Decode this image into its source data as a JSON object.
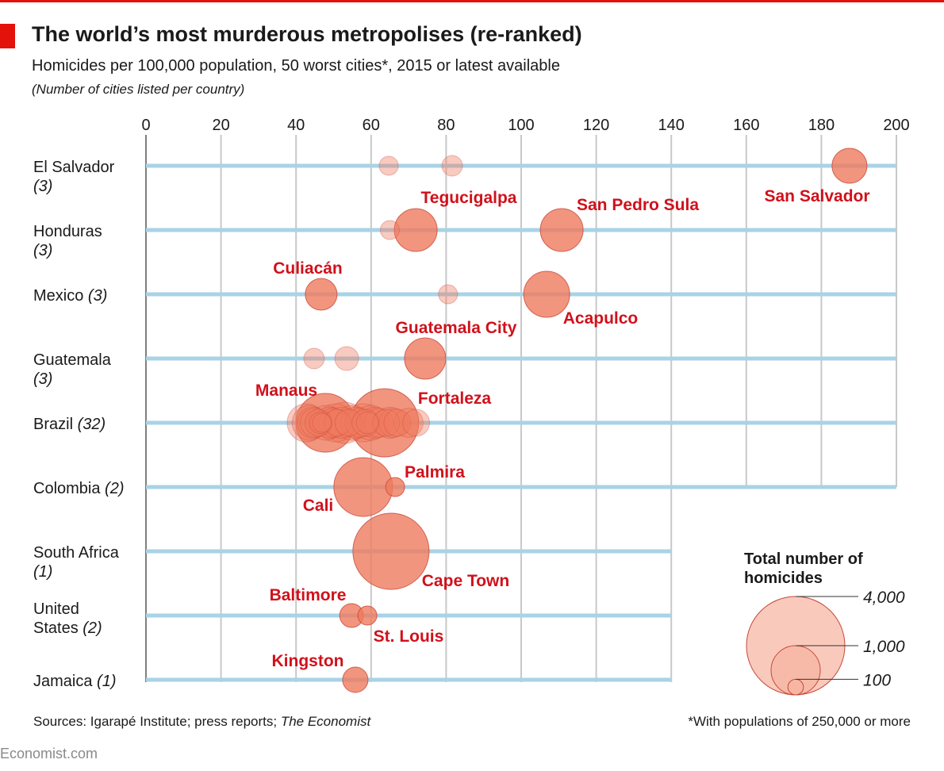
{
  "header": {
    "title": "The world’s most murderous metropolises (re-ranked)",
    "subtitle": "Homicides per 100,000 population, 50 worst cities*, 2015 or latest available",
    "note": "(Number of cities listed per country)"
  },
  "footer": {
    "sources_prefix": "Sources: Igarapé Institute; press reports; ",
    "sources_italic": "The Economist",
    "footnote": "*With populations of 250,000 or more",
    "brand": "Economist.com"
  },
  "colors": {
    "accent": "#e3120b",
    "bubble_fill": "#ef7a5e",
    "bubble_stroke": "#c8473a",
    "label": "#d0111b",
    "row_line": "#a9d3e6",
    "grid": "#c8c8c8"
  },
  "chart_data": {
    "type": "scatter",
    "title": "The world’s most murderous metropolises (re-ranked)",
    "xlabel": "",
    "xlim": [
      0,
      200
    ],
    "xticks": [
      "0",
      "20",
      "40",
      "60",
      "80",
      "100",
      "120",
      "140",
      "160",
      "180",
      "200"
    ],
    "grid": true,
    "size_encoding": "Total number of homicides",
    "legend": {
      "title": "Total number of homicides",
      "entries": [
        "4,000",
        "1,000",
        "100"
      ],
      "values": [
        4000,
        1000,
        100
      ],
      "placement": "bottom-right"
    },
    "rows": [
      {
        "country": "El Salvador",
        "count": "(3)",
        "cities": [
          {
            "x": 64.7,
            "n": 150
          },
          {
            "x": 81.6,
            "n": 175
          },
          {
            "x": 187.5,
            "n": 504,
            "label": "San Salvador"
          }
        ]
      },
      {
        "country": "Honduras",
        "count": "(3)",
        "cities": [
          {
            "x": 65,
            "n": 150
          },
          {
            "x": 71.9,
            "n": 758,
            "label": "Tegucigalpa"
          },
          {
            "x": 110.8,
            "n": 758,
            "label": "San Pedro Sula"
          }
        ]
      },
      {
        "country": "Mexico",
        "count": "(3)",
        "cities": [
          {
            "x": 46.7,
            "n": 416,
            "label": "Culiacán"
          },
          {
            "x": 80.5,
            "n": 150
          },
          {
            "x": 106.8,
            "n": 875,
            "label": "Acapulco"
          }
        ]
      },
      {
        "country": "Guatemala",
        "count": "(3)",
        "cities": [
          {
            "x": 44.8,
            "n": 175
          },
          {
            "x": 53.5,
            "n": 234
          },
          {
            "x": 74.4,
            "n": 703,
            "label": "Guatemala City"
          }
        ]
      },
      {
        "country": "Brazil",
        "count": "(32)",
        "cities": [
          {
            "x": 42.7,
            "n": 600
          },
          {
            "x": 43.6,
            "n": 500
          },
          {
            "x": 44.5,
            "n": 400
          },
          {
            "x": 45.0,
            "n": 350
          },
          {
            "x": 46.0,
            "n": 300
          },
          {
            "x": 46.5,
            "n": 200
          },
          {
            "x": 46.9,
            "n": 150
          },
          {
            "x": 47.8,
            "n": 1425,
            "label": "Manaus"
          },
          {
            "x": 48.0,
            "n": 500
          },
          {
            "x": 49.0,
            "n": 400
          },
          {
            "x": 50.0,
            "n": 350
          },
          {
            "x": 50.6,
            "n": 600
          },
          {
            "x": 51.0,
            "n": 300
          },
          {
            "x": 52.0,
            "n": 400
          },
          {
            "x": 53.0,
            "n": 700
          },
          {
            "x": 54.0,
            "n": 300
          },
          {
            "x": 55.0,
            "n": 500
          },
          {
            "x": 56.0,
            "n": 400
          },
          {
            "x": 57.0,
            "n": 350
          },
          {
            "x": 58.0,
            "n": 600
          },
          {
            "x": 58.5,
            "n": 300
          },
          {
            "x": 59.0,
            "n": 200
          },
          {
            "x": 60.0,
            "n": 500
          },
          {
            "x": 61.0,
            "n": 400
          },
          {
            "x": 62.0,
            "n": 350
          },
          {
            "x": 63.6,
            "n": 1924,
            "label": "Fortaleza"
          },
          {
            "x": 64.0,
            "n": 300
          },
          {
            "x": 65.0,
            "n": 400
          },
          {
            "x": 66.0,
            "n": 350
          },
          {
            "x": 67.0,
            "n": 300
          },
          {
            "x": 70.0,
            "n": 350
          },
          {
            "x": 72.0,
            "n": 300
          }
        ]
      },
      {
        "country": "Colombia",
        "count": "(2)",
        "cities": [
          {
            "x": 57.9,
            "n": 1425,
            "label": "Cali"
          },
          {
            "x": 66.4,
            "n": 150,
            "label": "Palmira"
          }
        ]
      },
      {
        "country": "South Africa",
        "count": "(1)",
        "cities": [
          {
            "x": 65.3,
            "n": 2400,
            "label": "Cape Town"
          }
        ]
      },
      {
        "country": "United States",
        "count": "(2)",
        "cities": [
          {
            "x": 54.8,
            "n": 234,
            "label": "Baltimore"
          },
          {
            "x": 59.0,
            "n": 150,
            "label": "St. Louis"
          }
        ]
      },
      {
        "country": "Jamaica",
        "count": "(1)",
        "cities": [
          {
            "x": 55.8,
            "n": 266,
            "label": "Kingston"
          }
        ]
      }
    ]
  }
}
